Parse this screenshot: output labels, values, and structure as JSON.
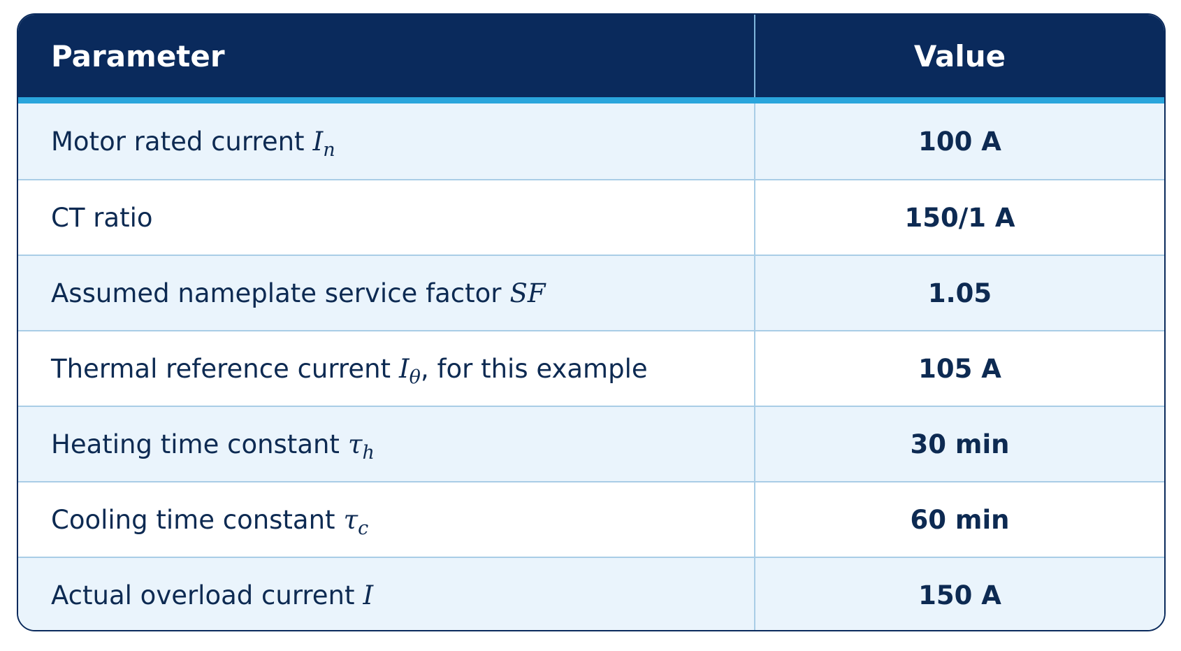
{
  "table": {
    "header": [
      "Parameter",
      "Value"
    ],
    "rows": [
      {
        "parameter": {
          "text": "Motor rated current",
          "symbol": "I",
          "sub": "n"
        },
        "value": "100 A"
      },
      {
        "parameter": {
          "text": "CT ratio"
        },
        "value": "150/1 A"
      },
      {
        "parameter": {
          "text": "Assumed nameplate service factor",
          "symbol": "SF"
        },
        "value": "1.05"
      },
      {
        "parameter": {
          "text": "Thermal reference current",
          "symbol": "I",
          "sub": "θ",
          "suffix": ", for this example"
        },
        "value": "105 A"
      },
      {
        "parameter": {
          "text": "Heating time constant",
          "symbol": "τ",
          "sub": "h"
        },
        "value": "30 min"
      },
      {
        "parameter": {
          "text": "Cooling time constant",
          "symbol": "τ",
          "sub": "c"
        },
        "value": "60 min"
      },
      {
        "parameter": {
          "text": "Actual overload current",
          "symbol": "I"
        },
        "value": "150 A"
      }
    ]
  }
}
